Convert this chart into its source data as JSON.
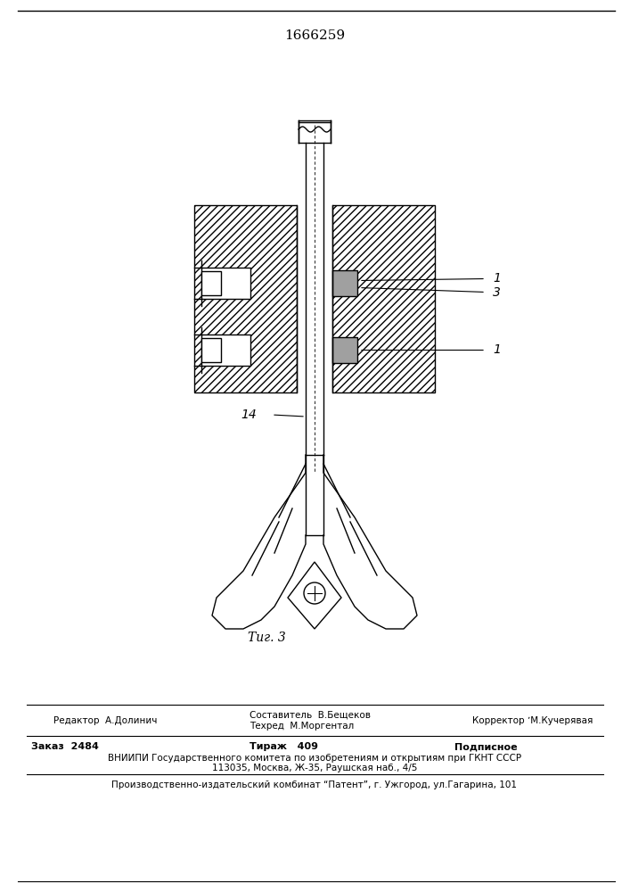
{
  "patent_number": "1666259",
  "fig_label": "Τиг. 3",
  "label_1a": "1",
  "label_3": "3",
  "label_1b": "1",
  "label_14": "14",
  "hatch_color": "#808080",
  "line_color": "#000000",
  "background_color": "#ffffff",
  "footer_line1_left": "Редактор  А.Долинич",
  "footer_line1_center": "Составитель  В.Бещеков",
  "footer_line1_center2": "Техред  М.Моргентал",
  "footer_line1_right": "Корректор ʼМ.Кучерявая",
  "footer_line2_left": "Заказ  2484",
  "footer_line2_center": "Тираж   409",
  "footer_line2_right": "Подписное",
  "footer_line3": "ВНИИПИ Государственного комитета по изобретениям и открытиям при ГКНТ СССР",
  "footer_line4": "113035, Москва, Ж-35, Раушская наб., 4/5",
  "footer_line5": "Производственно-издательский комбинат “Патент”, г. Ужгород, ул.Гагарина, 101"
}
